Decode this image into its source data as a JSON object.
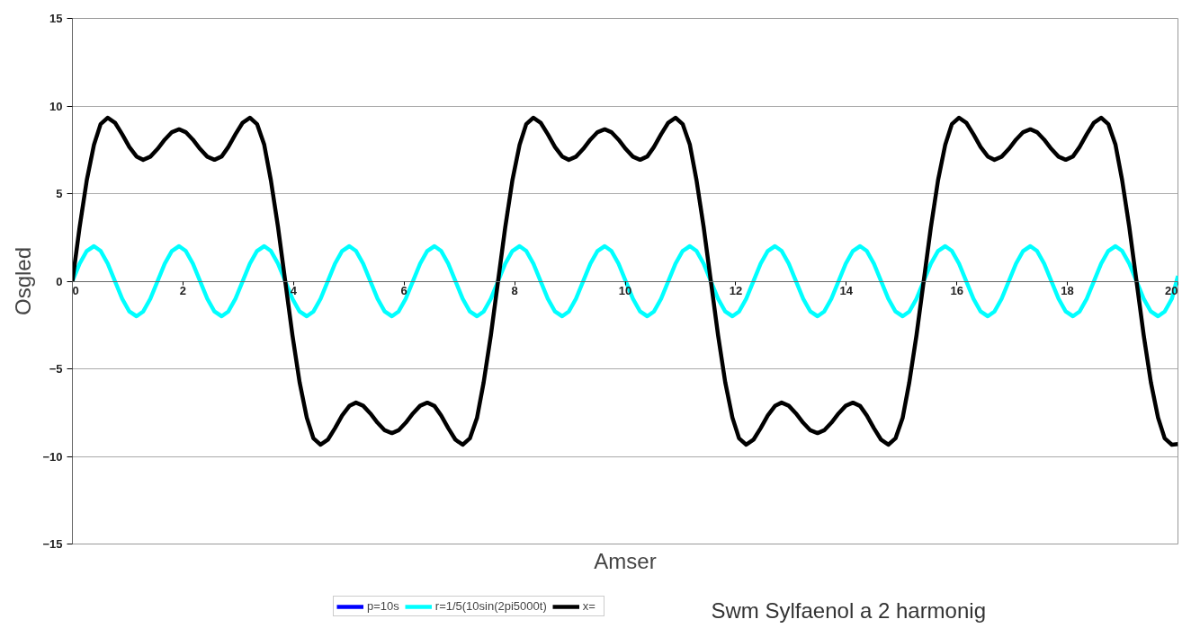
{
  "chart_data": {
    "type": "line",
    "xlabel": "Amser",
    "ylabel": "Osgled",
    "annotations": [
      "Swm Sylfaenol a 2 harmonig"
    ],
    "xlim": [
      0,
      20
    ],
    "ylim": [
      -15,
      15
    ],
    "xticks": [
      0,
      2,
      4,
      6,
      8,
      10,
      12,
      14,
      16,
      18,
      20
    ],
    "yticks": [
      -15,
      -10,
      -5,
      0,
      5,
      10,
      15
    ],
    "grid": "y",
    "legend": "bottom",
    "line_style": "solid",
    "x": [
      0,
      0.13,
      0.26,
      0.39,
      0.51,
      0.64,
      0.77,
      0.9,
      1.03,
      1.16,
      1.28,
      1.41,
      1.54,
      1.67,
      1.8,
      1.93,
      2.05,
      2.18,
      2.31,
      2.44,
      2.57,
      2.7,
      2.82,
      2.95,
      3.08,
      3.21,
      3.34,
      3.47,
      3.59,
      3.72,
      3.85,
      3.98,
      4.11,
      4.24,
      4.36,
      4.49,
      4.62,
      4.75,
      4.88,
      5.01,
      5.13,
      5.26,
      5.39,
      5.52,
      5.65,
      5.78,
      5.9,
      6.03,
      6.16,
      6.29,
      6.42,
      6.55,
      6.67,
      6.8,
      6.93,
      7.06,
      7.19,
      7.32,
      7.44,
      7.57,
      7.7,
      7.83,
      7.96,
      8.09,
      8.21,
      8.34,
      8.47,
      8.6,
      8.73,
      8.86,
      8.98,
      9.11,
      9.24,
      9.37,
      9.5,
      9.63,
      9.75,
      9.88,
      10.01,
      10.14,
      10.27,
      10.4,
      10.52,
      10.65,
      10.78,
      10.91,
      11.04,
      11.17,
      11.29,
      11.42,
      11.55,
      11.68,
      11.81,
      11.94,
      12.06,
      12.19,
      12.32,
      12.45,
      12.58,
      12.71,
      12.83,
      12.96,
      13.09,
      13.22,
      13.35,
      13.48,
      13.6,
      13.73,
      13.86,
      13.99,
      14.12,
      14.25,
      14.37,
      14.5,
      14.63,
      14.76,
      14.89,
      15.02,
      15.14,
      15.27,
      15.4,
      15.53,
      15.66,
      15.79,
      15.91,
      16.04,
      16.17,
      16.3,
      16.43,
      16.56,
      16.68,
      16.81,
      16.94,
      17.07,
      17.2,
      17.33,
      17.45,
      17.58,
      17.71,
      17.84,
      17.97,
      18.1,
      18.22,
      18.35,
      18.48,
      18.61,
      18.74,
      18.87,
      18.99,
      19.12,
      19.25,
      19.38,
      19.51,
      19.64,
      19.76,
      19.89,
      20
    ],
    "series": [
      {
        "name": "p=10s",
        "color": "#0000ff",
        "values": [
          null,
          null,
          null,
          null,
          null,
          null,
          null,
          null,
          null,
          null,
          null,
          null,
          null,
          null,
          null,
          null,
          null,
          null,
          null,
          null,
          null,
          null,
          null,
          null,
          null,
          null,
          null,
          null,
          null,
          null,
          null,
          null,
          null,
          null,
          null,
          null,
          null,
          null,
          null,
          null,
          null,
          null,
          null,
          null,
          null,
          null,
          null,
          null,
          null,
          null,
          null,
          null,
          null,
          null,
          null,
          null,
          null,
          null,
          null,
          null,
          null,
          null,
          null,
          null,
          null,
          null,
          null,
          null,
          null,
          null,
          null,
          null,
          null,
          null,
          null,
          null,
          null,
          null,
          null,
          null,
          null,
          null,
          null,
          null,
          null,
          null,
          null,
          null,
          null,
          null,
          null,
          null,
          null,
          null,
          null,
          null,
          null,
          null,
          null,
          null,
          null,
          null,
          null,
          null,
          null,
          null,
          null,
          null,
          null,
          null,
          null,
          null,
          null,
          null,
          null,
          null,
          null,
          null,
          null,
          null,
          null,
          null,
          null,
          null,
          null,
          null,
          null,
          null,
          null,
          null,
          null,
          null,
          null,
          null,
          null,
          null,
          null,
          null,
          null,
          null,
          null,
          null,
          null,
          null,
          null,
          null,
          null,
          null,
          null,
          null,
          null,
          null,
          null,
          null,
          null,
          null,
          null
        ]
      },
      {
        "name": "r=1/5(10sin(2pi5000t)",
        "color": "#00ffff",
        "values": [
          0,
          1,
          1.73,
          2,
          1.73,
          1,
          0,
          -1,
          -1.73,
          -2,
          -1.73,
          -1,
          0,
          1,
          1.73,
          2,
          1.73,
          1,
          0,
          -1,
          -1.73,
          -2,
          -1.73,
          -1,
          0,
          1,
          1.73,
          2,
          1.73,
          1,
          0,
          -1,
          -1.73,
          -2,
          -1.73,
          -1,
          0,
          1,
          1.73,
          2,
          1.73,
          1,
          0,
          -1,
          -1.73,
          -2,
          -1.73,
          -1,
          0,
          1,
          1.73,
          2,
          1.73,
          1,
          0,
          -1,
          -1.73,
          -2,
          -1.73,
          -1,
          0,
          1,
          1.73,
          2,
          1.73,
          1,
          0,
          -1,
          -1.73,
          -2,
          -1.73,
          -1,
          0,
          1,
          1.73,
          2,
          1.73,
          1,
          0,
          -1,
          -1.73,
          -2,
          -1.73,
          -1,
          0,
          1,
          1.73,
          2,
          1.73,
          1,
          0,
          -1,
          -1.73,
          -2,
          -1.73,
          -1,
          0,
          1,
          1.73,
          2,
          1.73,
          1,
          0,
          -1,
          -1.73,
          -2,
          -1.73,
          -1,
          0,
          1,
          1.73,
          2,
          1.73,
          1,
          0,
          -1,
          -1.73,
          -2,
          -1.73,
          -1,
          0,
          1,
          1.73,
          2,
          1.73,
          1,
          0,
          -1,
          -1.73,
          -2,
          -1.73,
          -1,
          0,
          1,
          1.73,
          2,
          1.73,
          1,
          0,
          -1,
          -1.73,
          -2,
          -1.73,
          -1,
          0,
          1,
          1.73,
          2,
          1.73,
          1,
          0,
          -1,
          -1.73,
          -2,
          -1.73,
          -1,
          0.3
        ]
      },
      {
        "name": "x=",
        "color": "#000000",
        "values": [
          0,
          3.08,
          5.77,
          7.79,
          8.97,
          9.33,
          9.05,
          8.39,
          7.66,
          7.12,
          6.93,
          7.11,
          7.55,
          8.08,
          8.51,
          8.67,
          8.51,
          8.08,
          7.55,
          7.11,
          6.93,
          7.12,
          7.66,
          8.39,
          9.05,
          9.33,
          8.97,
          7.79,
          5.77,
          3.08,
          0,
          -3.08,
          -5.77,
          -7.79,
          -8.97,
          -9.33,
          -9.05,
          -8.39,
          -7.66,
          -7.12,
          -6.93,
          -7.11,
          -7.55,
          -8.08,
          -8.51,
          -8.67,
          -8.51,
          -8.08,
          -7.55,
          -7.11,
          -6.93,
          -7.12,
          -7.66,
          -8.39,
          -9.05,
          -9.33,
          -8.97,
          -7.79,
          -5.77,
          -3.08,
          0,
          3.08,
          5.77,
          7.79,
          8.97,
          9.33,
          9.05,
          8.39,
          7.66,
          7.12,
          6.93,
          7.11,
          7.55,
          8.08,
          8.51,
          8.67,
          8.51,
          8.08,
          7.55,
          7.11,
          6.93,
          7.12,
          7.66,
          8.39,
          9.05,
          9.33,
          8.97,
          7.79,
          5.77,
          3.08,
          0,
          -3.08,
          -5.77,
          -7.79,
          -8.97,
          -9.33,
          -9.05,
          -8.39,
          -7.66,
          -7.12,
          -6.93,
          -7.11,
          -7.55,
          -8.08,
          -8.51,
          -8.67,
          -8.51,
          -8.08,
          -7.55,
          -7.11,
          -6.93,
          -7.12,
          -7.66,
          -8.39,
          -9.05,
          -9.33,
          -8.97,
          -7.79,
          -5.77,
          -3.08,
          0,
          3.08,
          5.77,
          7.79,
          8.97,
          9.33,
          9.05,
          8.39,
          7.66,
          7.12,
          6.93,
          7.11,
          7.55,
          8.08,
          8.51,
          8.67,
          8.51,
          8.08,
          7.55,
          7.11,
          6.93,
          7.12,
          7.66,
          8.39,
          9.05,
          9.33,
          8.97,
          7.79,
          5.77,
          3.08,
          0,
          -3.08,
          -5.77,
          -7.79,
          -8.97,
          -9.33,
          -9.3
        ]
      }
    ]
  }
}
